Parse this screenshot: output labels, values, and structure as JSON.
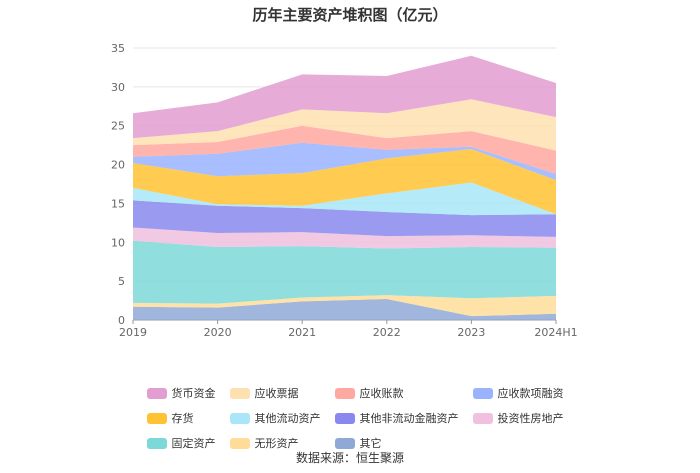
{
  "chart_data": {
    "type": "area",
    "stacked": true,
    "title": "历年主要资产堆积图（亿元）",
    "categories": [
      "2019",
      "2020",
      "2021",
      "2022",
      "2023",
      "2024H1"
    ],
    "ylim": [
      0,
      35
    ],
    "yticks": [
      0,
      5,
      10,
      15,
      20,
      25,
      30,
      35
    ],
    "legend_position": "bottom",
    "source": "数据来源：恒生聚源",
    "series": [
      {
        "name": "其它",
        "color": "#8fa9d6",
        "values": [
          1.7,
          1.6,
          2.4,
          2.7,
          0.5,
          0.8
        ]
      },
      {
        "name": "无形资产",
        "color": "#ffdd99",
        "values": [
          0.5,
          0.5,
          0.5,
          0.5,
          2.3,
          2.3
        ]
      },
      {
        "name": "固定资产",
        "color": "#7dd8d8",
        "values": [
          8.0,
          7.3,
          6.6,
          6.0,
          6.6,
          6.2
        ]
      },
      {
        "name": "投资性房地产",
        "color": "#f0c0de",
        "values": [
          1.7,
          1.8,
          1.8,
          1.6,
          1.5,
          1.4
        ]
      },
      {
        "name": "其他非流动金融资产",
        "color": "#8888ee",
        "values": [
          3.5,
          3.5,
          3.1,
          3.1,
          2.6,
          2.9
        ]
      },
      {
        "name": "其他流动资产",
        "color": "#a8e6f8",
        "values": [
          1.6,
          0.2,
          0.3,
          2.4,
          4.2,
          0.0
        ]
      },
      {
        "name": "存货",
        "color": "#ffc233",
        "values": [
          3.2,
          3.6,
          4.2,
          4.5,
          4.3,
          4.4
        ]
      },
      {
        "name": "应收款项融资",
        "color": "#99b3ff",
        "values": [
          0.8,
          2.9,
          3.9,
          1.1,
          0.3,
          0.8
        ]
      },
      {
        "name": "应收账款",
        "color": "#ffa8a0",
        "values": [
          1.5,
          1.5,
          2.2,
          1.5,
          2.0,
          3.0
        ]
      },
      {
        "name": "应收票据",
        "color": "#ffe0b0",
        "values": [
          0.9,
          1.4,
          2.1,
          3.2,
          4.1,
          4.3
        ]
      },
      {
        "name": "货币资金",
        "color": "#e29ed0",
        "values": [
          3.2,
          3.7,
          4.5,
          4.8,
          5.6,
          4.4
        ]
      }
    ],
    "legend_order": [
      "货币资金",
      "应收票据",
      "应收账款",
      "应收款项融资",
      "存货",
      "其他流动资产",
      "其他非流动金融资产",
      "投资性房地产",
      "固定资产",
      "无形资产",
      "其它"
    ]
  }
}
